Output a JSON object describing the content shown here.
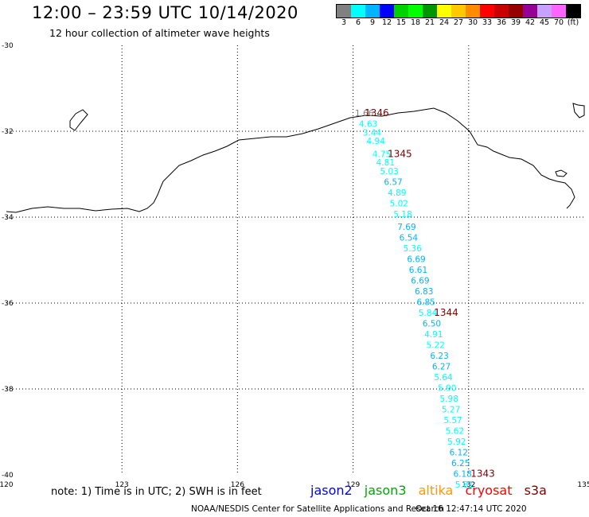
{
  "header": {
    "title": "12:00 – 23:59 UTC 10/14/2020",
    "subtitle": "12 hour collection of altimeter wave heights"
  },
  "legend": {
    "colors": [
      "#808080",
      "#00ffff",
      "#00b4ff",
      "#0000ff",
      "#00d200",
      "#00ff00",
      "#009600",
      "#ffff00",
      "#ffc800",
      "#ff8c00",
      "#ff0000",
      "#c80000",
      "#960000",
      "#960096",
      "#c8a0ff",
      "#ff64ff",
      "#000000"
    ],
    "labels": [
      "3",
      "6",
      "9",
      "12",
      "15",
      "18",
      "21",
      "24",
      "27",
      "30",
      "33",
      "36",
      "39",
      "42",
      "45",
      "70",
      "(ft)"
    ]
  },
  "map": {
    "lon_range": [
      120,
      135
    ],
    "lat_range": [
      -40,
      -30
    ],
    "lon_ticks": [
      "120",
      "123",
      "126",
      "129",
      "132",
      "135"
    ],
    "lat_ticks": [
      "-30",
      "-32",
      "-34",
      "-36",
      "-38",
      "-40"
    ]
  },
  "swh_points": [
    {
      "lon": 129.05,
      "lat": -31.65,
      "label": "1.66",
      "color": "#808080"
    },
    {
      "lon": 129.15,
      "lat": -31.9,
      "label": "4.63",
      "color": "#00ffff"
    },
    {
      "lon": 129.25,
      "lat": -32.1,
      "label": "3.44",
      "color": "#00ffff"
    },
    {
      "lon": 129.35,
      "lat": -32.3,
      "label": "4.94",
      "color": "#00ffff"
    },
    {
      "lon": 129.5,
      "lat": -32.6,
      "label": "4.75",
      "color": "#00ffff"
    },
    {
      "lon": 129.6,
      "lat": -32.8,
      "label": "4.81",
      "color": "#00ffff"
    },
    {
      "lon": 129.7,
      "lat": -33.0,
      "label": "5.03",
      "color": "#00ffff"
    },
    {
      "lon": 129.8,
      "lat": -33.25,
      "label": "6.57",
      "color": "#00b4ff"
    },
    {
      "lon": 129.9,
      "lat": -33.5,
      "label": "4.89",
      "color": "#00ffff"
    },
    {
      "lon": 129.95,
      "lat": -33.75,
      "label": "5.02",
      "color": "#00ffff"
    },
    {
      "lon": 130.05,
      "lat": -34.0,
      "label": "5.18",
      "color": "#00ffff"
    },
    {
      "lon": 130.15,
      "lat": -34.3,
      "label": "7.69",
      "color": "#00b4ff"
    },
    {
      "lon": 130.2,
      "lat": -34.55,
      "label": "6.54",
      "color": "#00b4ff"
    },
    {
      "lon": 130.3,
      "lat": -34.8,
      "label": "5.36",
      "color": "#00ffff"
    },
    {
      "lon": 130.4,
      "lat": -35.05,
      "label": "6.69",
      "color": "#00b4ff"
    },
    {
      "lon": 130.45,
      "lat": -35.3,
      "label": "6.61",
      "color": "#00b4ff"
    },
    {
      "lon": 130.5,
      "lat": -35.55,
      "label": "6.69",
      "color": "#00b4ff"
    },
    {
      "lon": 130.6,
      "lat": -35.8,
      "label": "6.83",
      "color": "#00b4ff"
    },
    {
      "lon": 130.65,
      "lat": -36.05,
      "label": "6.85",
      "color": "#00b4ff"
    },
    {
      "lon": 130.7,
      "lat": -36.3,
      "label": "5.84",
      "color": "#00ffff"
    },
    {
      "lon": 130.8,
      "lat": -36.55,
      "label": "6.50",
      "color": "#00b4ff"
    },
    {
      "lon": 130.85,
      "lat": -36.8,
      "label": "4.91",
      "color": "#00ffff"
    },
    {
      "lon": 130.9,
      "lat": -37.05,
      "label": "5.22",
      "color": "#00ffff"
    },
    {
      "lon": 131.0,
      "lat": -37.3,
      "label": "6.23",
      "color": "#00b4ff"
    },
    {
      "lon": 131.05,
      "lat": -37.55,
      "label": "6.27",
      "color": "#00b4ff"
    },
    {
      "lon": 131.1,
      "lat": -37.8,
      "label": "5.64",
      "color": "#00ffff"
    },
    {
      "lon": 131.2,
      "lat": -38.05,
      "label": "5.90",
      "color": "#00ffff"
    },
    {
      "lon": 131.25,
      "lat": -38.3,
      "label": "5.98",
      "color": "#00ffff"
    },
    {
      "lon": 131.3,
      "lat": -38.55,
      "label": "5.27",
      "color": "#00ffff"
    },
    {
      "lon": 131.35,
      "lat": -38.8,
      "label": "5.57",
      "color": "#00ffff"
    },
    {
      "lon": 131.4,
      "lat": -39.05,
      "label": "5.62",
      "color": "#00ffff"
    },
    {
      "lon": 131.45,
      "lat": -39.3,
      "label": "5.92",
      "color": "#00ffff"
    },
    {
      "lon": 131.5,
      "lat": -39.55,
      "label": "6.12",
      "color": "#00b4ff"
    },
    {
      "lon": 131.55,
      "lat": -39.8,
      "label": "6.25",
      "color": "#00b4ff"
    },
    {
      "lon": 131.6,
      "lat": -40.05,
      "label": "6.18",
      "color": "#00b4ff"
    },
    {
      "lon": 131.65,
      "lat": -40.3,
      "label": "5.81",
      "color": "#00ffff"
    }
  ],
  "time_labels": [
    {
      "lon": 129.3,
      "lat": -31.65,
      "label": "1346"
    },
    {
      "lon": 129.9,
      "lat": -32.6,
      "label": "1345"
    },
    {
      "lon": 131.1,
      "lat": -36.3,
      "label": "1344"
    },
    {
      "lon": 132.05,
      "lat": -40.05,
      "label": "1343"
    }
  ],
  "time_label_color": "#800000",
  "footer": {
    "note": "note:  1) Time is in UTC;  2) SWH is in feet",
    "satellites": [
      {
        "name": "jason2",
        "color": "#0000ff"
      },
      {
        "name": "jason3",
        "color": "#00aa00"
      },
      {
        "name": "altika",
        "color": "#ff9900"
      },
      {
        "name": "cryosat",
        "color": "#ff0000"
      },
      {
        "name": "s3a",
        "color": "#800000"
      }
    ],
    "credit": "NOAA/NESDIS Center for Satellite Applications and Research",
    "issued": "Oct 16 12:47:14 UTC 2020"
  }
}
